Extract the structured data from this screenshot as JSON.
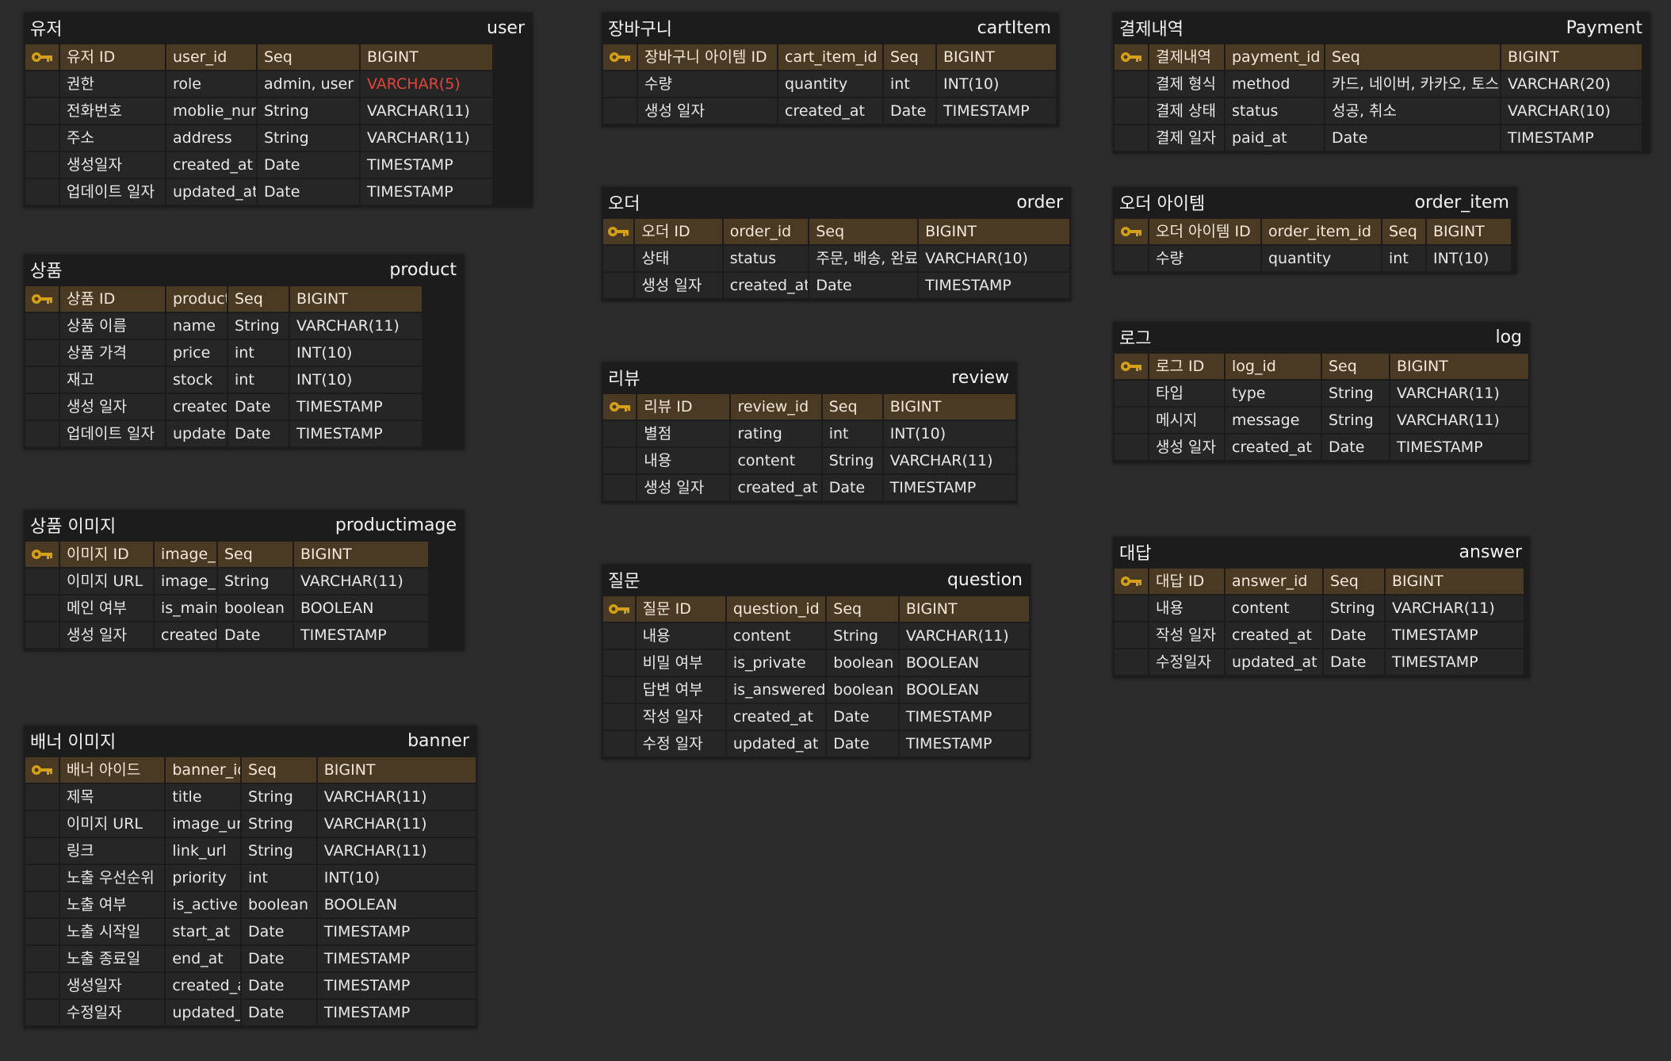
{
  "colors": {
    "background": "#2c2c2c",
    "entity": "#1c1c1c",
    "pk_row": "#4a3a24",
    "key_icon": "#d4a017",
    "highlight": "#e0463a"
  },
  "entities": [
    {
      "id": "user",
      "name_ko": "유저",
      "name_en": "user",
      "cols": [
        44,
        134,
        285,
        130,
        166
      ],
      "rows": [
        [
          "유저 ID",
          "user_id",
          "Seq",
          "BIGINT"
        ],
        [
          "권한",
          "role",
          "admin, user",
          "VARCHAR(5)"
        ],
        [
          "전화번호",
          "moblie_number",
          "String",
          "VARCHAR(11)"
        ],
        [
          "주소",
          "address",
          "String",
          "VARCHAR(11)"
        ],
        [
          "생성일자",
          "created_at",
          "Date",
          "TIMESTAMP"
        ],
        [
          "업데이트 일자",
          "updated_at",
          "Date",
          "TIMESTAMP"
        ]
      ]
    },
    {
      "id": "product",
      "name_ko": "상품",
      "name_en": "product",
      "cols": [
        44,
        134,
        124,
        78,
        166
      ],
      "rows": [
        [
          "상품 ID",
          "product_id",
          "Seq",
          "BIGINT"
        ],
        [
          "상품 이름",
          "name",
          "String",
          "VARCHAR(11)"
        ],
        [
          "상품 가격",
          "price",
          "int",
          "INT(10)"
        ],
        [
          "재고",
          "stock",
          "int",
          "INT(10)"
        ],
        [
          "생성 일자",
          "created_at",
          "Date",
          "TIMESTAMP"
        ],
        [
          "업데이트 일자",
          "updated_at",
          "Date",
          "TIMESTAMP"
        ]
      ]
    },
    {
      "id": "productimage",
      "name_ko": "상품 이미지",
      "name_en": "productimage",
      "cols": [
        44,
        119,
        118,
        96,
        169
      ],
      "rows": [
        [
          "이미지 ID",
          "image_id",
          "Seq",
          "BIGINT"
        ],
        [
          "이미지 URL",
          "image_url",
          "String",
          "VARCHAR(11)"
        ],
        [
          "메인 여부",
          "is_main",
          "boolean",
          "BOOLEAN"
        ],
        [
          "생성 일자",
          "created_at",
          "Date",
          "TIMESTAMP"
        ]
      ]
    },
    {
      "id": "banner",
      "name_ko": "배너 이미지",
      "name_en": "banner",
      "cols": [
        44,
        134,
        124,
        96,
        200
      ],
      "rows": [
        [
          "배너 아이드",
          "banner_id",
          "Seq",
          "BIGINT"
        ],
        [
          "제목",
          "title",
          "String",
          "VARCHAR(11)"
        ],
        [
          "이미지 URL",
          "image_url",
          "String",
          "VARCHAR(11)"
        ],
        [
          "링크",
          "link_url",
          "String",
          "VARCHAR(11)"
        ],
        [
          "노출 우선순위",
          "priority",
          "int",
          "INT(10)"
        ],
        [
          "노출 여부",
          "is_active",
          "boolean",
          "BOOLEAN"
        ],
        [
          "노출 시작일",
          "start_at",
          "Date",
          "TIMESTAMP"
        ],
        [
          "노출 종료일",
          "end_at",
          "Date",
          "TIMESTAMP"
        ],
        [
          "생성일자",
          "created_at",
          "Date",
          "TIMESTAMP"
        ],
        [
          "수정일자",
          "updated_at",
          "Date",
          "TIMESTAMP"
        ]
      ]
    },
    {
      "id": "cartitem",
      "name_ko": "장바구니",
      "name_en": "cartItem",
      "cols": [
        44,
        177,
        133,
        67,
        150
      ],
      "rows": [
        [
          "장바구니 아이템 ID",
          "cart_item_id",
          "Seq",
          "BIGINT"
        ],
        [
          "수량",
          "quantity",
          "int",
          "INT(10)"
        ],
        [
          "생성 일자",
          "created_at",
          "Date",
          "TIMESTAMP"
        ]
      ]
    },
    {
      "id": "order",
      "name_ko": "오더",
      "name_en": "order",
      "cols": [
        44,
        120,
        117,
        149,
        206
      ],
      "rows": [
        [
          "오더 ID",
          "order_id",
          "Seq",
          "BIGINT"
        ],
        [
          "상태",
          "status",
          "주문, 배송, 완료",
          "VARCHAR(10)"
        ],
        [
          "생성 일자",
          "created_at",
          "Date",
          "TIMESTAMP"
        ]
      ]
    },
    {
      "id": "review",
      "name_ko": "리뷰",
      "name_en": "review",
      "cols": [
        44,
        120,
        117,
        78,
        169
      ],
      "rows": [
        [
          "리뷰 ID",
          "review_id",
          "Seq",
          "BIGINT"
        ],
        [
          "별점",
          "rating",
          "int",
          "INT(10)"
        ],
        [
          "내용",
          "content",
          "String",
          "VARCHAR(11)"
        ],
        [
          "생성 일자",
          "created_at",
          "Date",
          "TIMESTAMP"
        ]
      ]
    },
    {
      "id": "question",
      "name_ko": "질문",
      "name_en": "question",
      "cols": [
        44,
        120,
        133,
        96,
        172
      ],
      "rows": [
        [
          "질문 ID",
          "question_id",
          "Seq",
          "BIGINT"
        ],
        [
          "내용",
          "content",
          "String",
          "VARCHAR(11)"
        ],
        [
          "비밀 여부",
          "is_private",
          "boolean",
          "BOOLEAN"
        ],
        [
          "답변 여부",
          "is_answered",
          "boolean",
          "BOOLEAN"
        ],
        [
          "작성 일자",
          "created_at",
          "Date",
          "TIMESTAMP"
        ],
        [
          "수정 일자",
          "updated_at",
          "Date",
          "TIMESTAMP"
        ]
      ]
    },
    {
      "id": "payment",
      "name_ko": "결제내역",
      "name_en": "Payment",
      "cols": [
        44,
        96,
        126,
        222,
        177
      ],
      "rows": [
        [
          "결제내역",
          "payment_id",
          "Seq",
          "BIGINT"
        ],
        [
          "결제 형식",
          "method",
          "카드, 네이버, 카카오, 토스",
          "VARCHAR(20)"
        ],
        [
          "결제 상태",
          "status",
          "성공, 취소",
          "VARCHAR(10)"
        ],
        [
          "결제 일자",
          "paid_at",
          "Date",
          "TIMESTAMP"
        ]
      ]
    },
    {
      "id": "orderitem",
      "name_ko": "오더 아이템",
      "name_en": "order_item",
      "cols": [
        44,
        142,
        152,
        56,
        106
      ],
      "rows": [
        [
          "오더 아이템 ID",
          "order_item_id",
          "Seq",
          "BIGINT"
        ],
        [
          "수량",
          "quantity",
          "int",
          "INT(10)"
        ]
      ]
    },
    {
      "id": "log",
      "name_ko": "로그",
      "name_en": "log",
      "cols": [
        44,
        96,
        122,
        86,
        174
      ],
      "rows": [
        [
          "로그 ID",
          "log_id",
          "Seq",
          "BIGINT"
        ],
        [
          "타입",
          "type",
          "String",
          "VARCHAR(11)"
        ],
        [
          "메시지",
          "message",
          "String",
          "VARCHAR(11)"
        ],
        [
          "생성 일자",
          "created_at",
          "Date",
          "TIMESTAMP"
        ]
      ]
    },
    {
      "id": "answer",
      "name_ko": "대답",
      "name_en": "answer",
      "cols": [
        44,
        96,
        124,
        78,
        174
      ],
      "rows": [
        [
          "대답 ID",
          "answer_id",
          "Seq",
          "BIGINT"
        ],
        [
          "내용",
          "content",
          "String",
          "VARCHAR(11)"
        ],
        [
          "작성 일자",
          "created_at",
          "Date",
          "TIMESTAMP"
        ],
        [
          "수정일자",
          "updated_at",
          "Date",
          "TIMESTAMP"
        ]
      ]
    }
  ],
  "highlighted_cells": [
    {
      "entity": "user",
      "row": 1,
      "col": 3
    }
  ]
}
